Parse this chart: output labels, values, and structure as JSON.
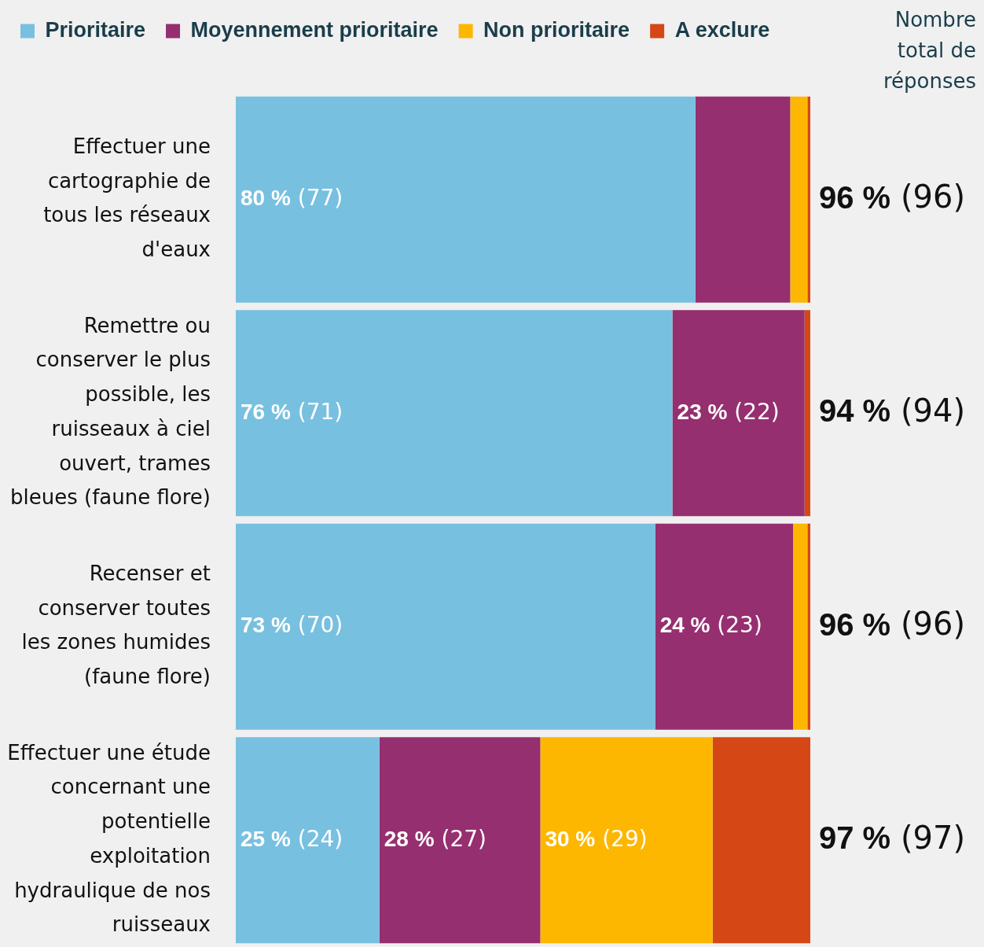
{
  "chart_data": {
    "type": "bar",
    "orientation": "horizontal",
    "stacked": true,
    "categories": [
      "Effectuer une cartographie de tous les réseaux d'eaux",
      "Remettre ou conserver le plus possible, les ruisseaux à ciel ouvert, trames bleues (faune flore)",
      "Recenser et conserver toutes les zones humides (faune flore)",
      "Effectuer une étude concernant une potentielle exploitation hydraulique de nos ruisseaux"
    ],
    "xlim": [
      0,
      100
    ],
    "series": [
      {
        "name": "Prioritaire",
        "color": "#78c0e0",
        "values": [
          80,
          76,
          73,
          25
        ],
        "value_labels": [
          "80 % (77)",
          "76 % (71)",
          "73 % (70)",
          "25 % (24)"
        ]
      },
      {
        "name": "Moyennement prioritaire",
        "color": "#952f6f",
        "values": [
          16.5,
          23,
          24,
          28
        ],
        "value_labels": [
          null,
          "23 % (22)",
          "24 % (23)",
          "28 % (27)"
        ]
      },
      {
        "name": "Non prioritaire",
        "color": "#fdb700",
        "values": [
          3,
          0,
          2.5,
          30
        ],
        "value_labels": [
          null,
          null,
          null,
          "30 % (29)"
        ]
      },
      {
        "name": "A exclure",
        "color": "#d54816",
        "values": [
          0.5,
          1,
          0.5,
          17
        ],
        "value_labels": [
          null,
          null,
          null,
          null
        ]
      }
    ],
    "totals": [
      "96 % (96)",
      "94 % (94)",
      "96 % (96)",
      "97 % (97)"
    ],
    "annotations": [
      "Nombre total de réponses"
    ],
    "legend": "top left",
    "tick_labels": "y"
  }
}
